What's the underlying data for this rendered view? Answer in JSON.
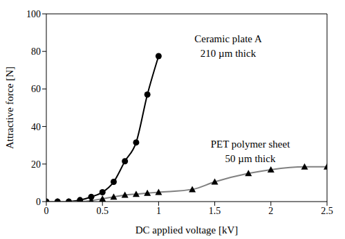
{
  "chart_data": {
    "type": "line",
    "x_label": "DC applied voltage [kV]",
    "y_label": "Attractive force [N]",
    "xlim": [
      0,
      2.5
    ],
    "xticks": [
      0,
      0.5,
      1,
      1.5,
      2,
      2.5
    ],
    "ylim": [
      0,
      100
    ],
    "yticks": [
      0,
      20,
      40,
      60,
      80,
      100
    ],
    "grid": false,
    "series": [
      {
        "name": "Ceramic plate A",
        "annotation": "210 µm thick",
        "color": "#000000",
        "marker": "circle",
        "x": [
          0,
          0.1,
          0.2,
          0.3,
          0.4,
          0.5,
          0.6,
          0.7,
          0.8,
          0.9,
          1.0
        ],
        "values": [
          0,
          0,
          0,
          0.8,
          2.5,
          5,
          10.5,
          21.5,
          31.5,
          57,
          77.5
        ]
      },
      {
        "name": "PET polymer sheet",
        "annotation": "50 µm thick",
        "color": "#808080",
        "marker": "triangle",
        "x": [
          0,
          0.1,
          0.2,
          0.3,
          0.4,
          0.5,
          0.6,
          0.7,
          0.8,
          0.9,
          1.0,
          1.3,
          1.5,
          1.8,
          2.0,
          2.3,
          2.5
        ],
        "values": [
          0,
          0,
          0,
          0,
          0.5,
          1.5,
          2.5,
          3.5,
          4,
          4.5,
          5,
          6.5,
          10.5,
          15,
          17,
          18.5,
          18.5
        ]
      }
    ]
  }
}
